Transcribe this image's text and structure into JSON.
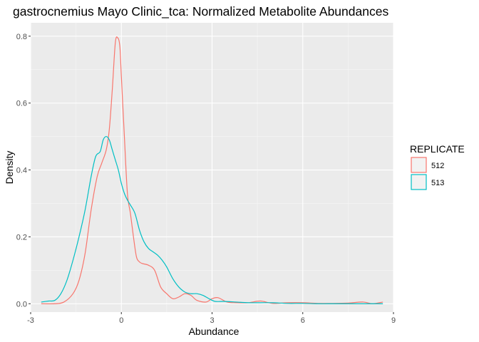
{
  "chart_data": {
    "type": "line",
    "title": "gastrocnemius Mayo Clinic_tca: Normalized Metabolite Abundances",
    "xlabel": "Abundance",
    "ylabel": "Density",
    "xlim": [
      -3.0,
      9.0
    ],
    "ylim": [
      -0.025,
      0.84
    ],
    "x_ticks": [
      -3,
      0,
      3,
      6,
      9
    ],
    "y_ticks": [
      0.0,
      0.2,
      0.4,
      0.6,
      0.8
    ],
    "x_tick_labels": [
      "-3",
      "0",
      "3",
      "6",
      "9"
    ],
    "y_tick_labels": [
      "0.0",
      "0.2",
      "0.4",
      "0.6",
      "0.8"
    ],
    "grid": true,
    "legend_position": "right",
    "legend_title": "REPLICATE",
    "series": [
      {
        "name": "512",
        "color": "#F8766D",
        "x": [
          -2.65,
          -2.2,
          -1.9,
          -1.6,
          -1.4,
          -1.2,
          -1.0,
          -0.8,
          -0.65,
          -0.5,
          -0.4,
          -0.3,
          -0.2,
          -0.12,
          -0.05,
          0.0,
          0.1,
          0.2,
          0.3,
          0.4,
          0.5,
          0.6,
          0.7,
          0.9,
          1.1,
          1.3,
          1.5,
          1.7,
          1.9,
          2.1,
          2.3,
          2.5,
          2.8,
          3.0,
          3.2,
          3.5,
          3.8,
          4.2,
          4.6,
          5.0,
          5.5,
          6.0,
          6.5,
          7.0,
          7.5,
          8.0,
          8.3,
          8.65
        ],
        "y": [
          0.0,
          0.0,
          0.005,
          0.03,
          0.07,
          0.15,
          0.28,
          0.38,
          0.42,
          0.46,
          0.52,
          0.64,
          0.78,
          0.795,
          0.77,
          0.68,
          0.5,
          0.33,
          0.27,
          0.2,
          0.14,
          0.125,
          0.12,
          0.115,
          0.1,
          0.05,
          0.03,
          0.015,
          0.02,
          0.03,
          0.025,
          0.01,
          0.005,
          0.015,
          0.018,
          0.005,
          0.003,
          0.003,
          0.008,
          0.001,
          0.003,
          0.003,
          0.001,
          0.001,
          0.002,
          0.005,
          0.0,
          0.005
        ]
      },
      {
        "name": "513",
        "color": "#00BFC4",
        "x": [
          -2.65,
          -2.4,
          -2.2,
          -2.0,
          -1.8,
          -1.6,
          -1.4,
          -1.2,
          -1.0,
          -0.85,
          -0.7,
          -0.6,
          -0.5,
          -0.4,
          -0.3,
          -0.2,
          -0.1,
          0.0,
          0.1,
          0.2,
          0.3,
          0.45,
          0.6,
          0.75,
          0.9,
          1.05,
          1.2,
          1.35,
          1.5,
          1.7,
          1.9,
          2.1,
          2.3,
          2.5,
          2.7,
          2.9,
          3.1,
          3.4,
          3.8,
          4.2,
          4.6,
          5.0,
          5.5,
          6.0,
          6.5,
          7.0,
          7.5,
          8.0,
          8.65
        ],
        "y": [
          0.005,
          0.008,
          0.01,
          0.03,
          0.07,
          0.13,
          0.2,
          0.28,
          0.38,
          0.44,
          0.455,
          0.49,
          0.5,
          0.49,
          0.46,
          0.43,
          0.4,
          0.36,
          0.33,
          0.31,
          0.295,
          0.27,
          0.22,
          0.185,
          0.165,
          0.155,
          0.145,
          0.13,
          0.11,
          0.075,
          0.05,
          0.035,
          0.03,
          0.03,
          0.025,
          0.015,
          0.007,
          0.007,
          0.005,
          0.003,
          0.003,
          0.003,
          0.001,
          0.001,
          0.0,
          0.0,
          0.0,
          0.0,
          0.0
        ]
      }
    ]
  }
}
